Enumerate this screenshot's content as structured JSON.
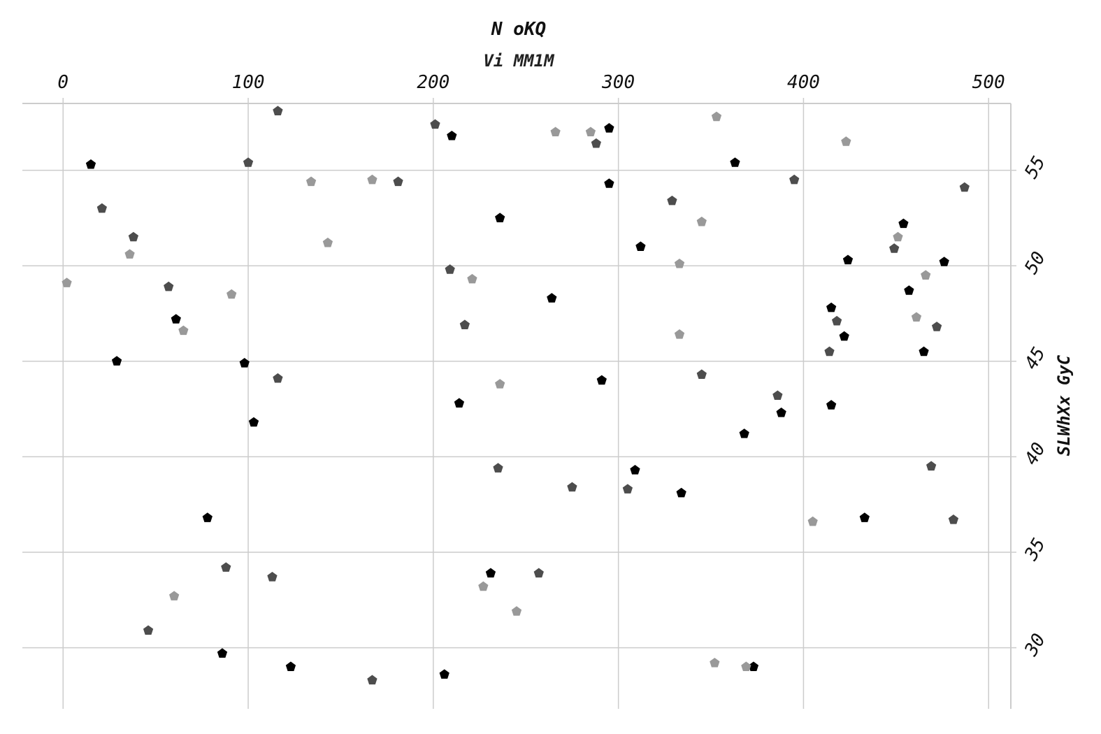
{
  "chart_data": {
    "type": "scatter",
    "title": "N oKQ",
    "subtitle": "Vi MM1M",
    "xlabel": "",
    "ylabel": "SLWhXx GyC",
    "xlim": [
      -22,
      512
    ],
    "ylim": [
      26.8,
      58.5
    ],
    "x_ticks": [
      0,
      100,
      200,
      300,
      400,
      500
    ],
    "y_ticks": [
      30,
      35,
      40,
      45,
      50,
      55
    ],
    "x_axis_position": "top",
    "y_axis_position": "right",
    "grid": true,
    "marker": "pentagon",
    "series": [
      {
        "color": "#000000",
        "points": [
          [
            15,
            55.3
          ],
          [
            210,
            56.8
          ],
          [
            295,
            57.2
          ],
          [
            295,
            54.3
          ],
          [
            363,
            55.4
          ],
          [
            236,
            52.5
          ],
          [
            312,
            51.0
          ],
          [
            264,
            48.3
          ],
          [
            424,
            50.3
          ],
          [
            454,
            52.2
          ],
          [
            476,
            50.2
          ],
          [
            457,
            48.7
          ],
          [
            61,
            47.2
          ],
          [
            415,
            47.8
          ],
          [
            422,
            46.3
          ],
          [
            465,
            45.5
          ],
          [
            29,
            45.0
          ],
          [
            98,
            44.9
          ],
          [
            291,
            44.0
          ],
          [
            214,
            42.8
          ],
          [
            415,
            42.7
          ],
          [
            388,
            42.3
          ],
          [
            103,
            41.8
          ],
          [
            368,
            41.2
          ],
          [
            309,
            39.3
          ],
          [
            334,
            38.1
          ],
          [
            78,
            36.8
          ],
          [
            433,
            36.8
          ],
          [
            231,
            33.9
          ],
          [
            86,
            29.7
          ],
          [
            123,
            29.0
          ],
          [
            206,
            28.6
          ],
          [
            373,
            29.0
          ]
        ]
      },
      {
        "color": "#4d4d4d",
        "points": [
          [
            116,
            58.1
          ],
          [
            201,
            57.4
          ],
          [
            288,
            56.4
          ],
          [
            100,
            55.4
          ],
          [
            181,
            54.4
          ],
          [
            395,
            54.5
          ],
          [
            487,
            54.1
          ],
          [
            21,
            53.0
          ],
          [
            329,
            53.4
          ],
          [
            38,
            51.5
          ],
          [
            449,
            50.9
          ],
          [
            209,
            49.8
          ],
          [
            57,
            48.9
          ],
          [
            418,
            47.1
          ],
          [
            217,
            46.9
          ],
          [
            472,
            46.8
          ],
          [
            414,
            45.5
          ],
          [
            116,
            44.1
          ],
          [
            345,
            44.3
          ],
          [
            386,
            43.2
          ],
          [
            235,
            39.4
          ],
          [
            469,
            39.5
          ],
          [
            275,
            38.4
          ],
          [
            305,
            38.3
          ],
          [
            481,
            36.7
          ],
          [
            88,
            34.2
          ],
          [
            113,
            33.7
          ],
          [
            257,
            33.9
          ],
          [
            46,
            30.9
          ],
          [
            167,
            28.3
          ]
        ]
      },
      {
        "color": "#999999",
        "points": [
          [
            353,
            57.8
          ],
          [
            266,
            57.0
          ],
          [
            285,
            57.0
          ],
          [
            423,
            56.5
          ],
          [
            134,
            54.4
          ],
          [
            167,
            54.5
          ],
          [
            345,
            52.3
          ],
          [
            143,
            51.2
          ],
          [
            451,
            51.5
          ],
          [
            36,
            50.6
          ],
          [
            333,
            50.1
          ],
          [
            2,
            49.1
          ],
          [
            221,
            49.3
          ],
          [
            466,
            49.5
          ],
          [
            91,
            48.5
          ],
          [
            461,
            47.3
          ],
          [
            65,
            46.6
          ],
          [
            333,
            46.4
          ],
          [
            236,
            43.8
          ],
          [
            405,
            36.6
          ],
          [
            227,
            33.2
          ],
          [
            60,
            32.7
          ],
          [
            245,
            31.9
          ],
          [
            352,
            29.2
          ],
          [
            369,
            29.0
          ]
        ]
      }
    ]
  }
}
